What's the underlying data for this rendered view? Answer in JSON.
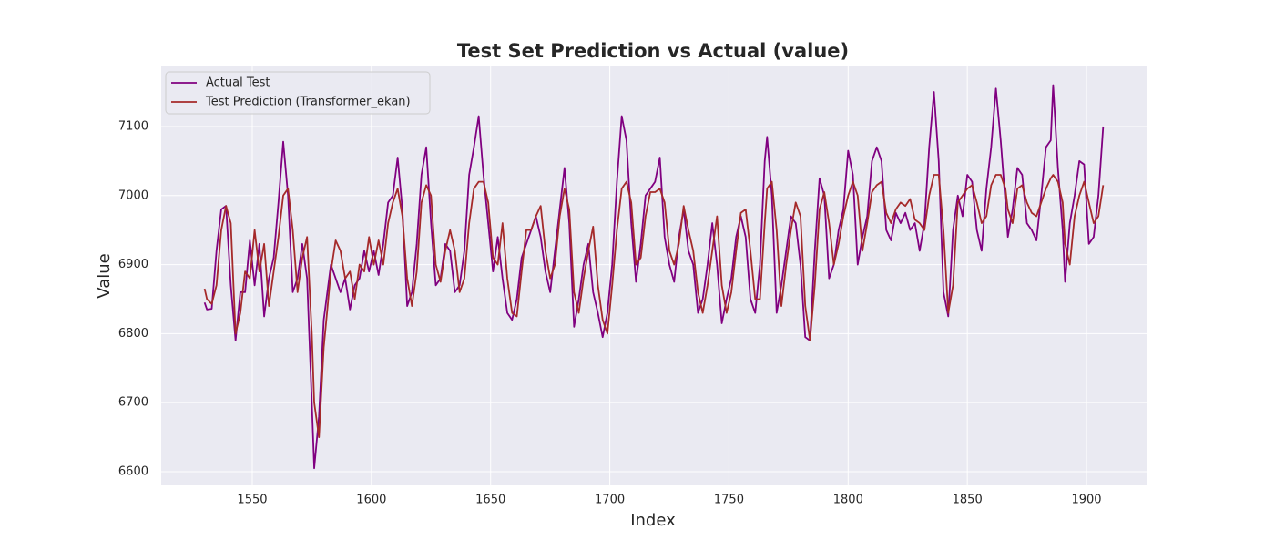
{
  "chart_data": {
    "type": "line",
    "title": "Test Set Prediction vs Actual (value)",
    "xlabel": "Index",
    "ylabel": "Value",
    "x": [
      1530,
      1531,
      1533,
      1535,
      1537,
      1539,
      1541,
      1543,
      1545,
      1547,
      1549,
      1551,
      1553,
      1555,
      1557,
      1559,
      1561,
      1563,
      1565,
      1567,
      1569,
      1571,
      1573,
      1575,
      1576,
      1578,
      1580,
      1583,
      1585,
      1587,
      1589,
      1591,
      1593,
      1595,
      1597,
      1599,
      1601,
      1603,
      1605,
      1607,
      1609,
      1611,
      1613,
      1615,
      1617,
      1619,
      1621,
      1623,
      1625,
      1627,
      1629,
      1631,
      1633,
      1635,
      1637,
      1639,
      1641,
      1643,
      1645,
      1647,
      1649,
      1651,
      1653,
      1655,
      1657,
      1659,
      1661,
      1663,
      1665,
      1667,
      1669,
      1671,
      1673,
      1675,
      1677,
      1679,
      1681,
      1683,
      1685,
      1687,
      1689,
      1691,
      1693,
      1695,
      1697,
      1699,
      1701,
      1703,
      1705,
      1707,
      1709,
      1711,
      1713,
      1715,
      1717,
      1719,
      1721,
      1723,
      1725,
      1727,
      1729,
      1731,
      1733,
      1735,
      1737,
      1739,
      1741,
      1743,
      1745,
      1747,
      1749,
      1751,
      1753,
      1755,
      1757,
      1759,
      1761,
      1763,
      1765,
      1766,
      1768,
      1770,
      1772,
      1774,
      1776,
      1778,
      1780,
      1782,
      1784,
      1786,
      1788,
      1790,
      1792,
      1794,
      1796,
      1798,
      1800,
      1802,
      1804,
      1806,
      1808,
      1810,
      1812,
      1814,
      1816,
      1818,
      1820,
      1822,
      1824,
      1826,
      1828,
      1830,
      1832,
      1834,
      1836,
      1838,
      1840,
      1842,
      1844,
      1846,
      1848,
      1850,
      1852,
      1854,
      1856,
      1858,
      1860,
      1862,
      1864,
      1866,
      1867,
      1869,
      1871,
      1873,
      1875,
      1877,
      1879,
      1881,
      1883,
      1885,
      1886,
      1888,
      1890,
      1891,
      1893,
      1895,
      1897,
      1899,
      1901,
      1903,
      1905,
      1907
    ],
    "series": [
      {
        "name": "Actual Test",
        "color": "#800080",
        "values": [
          6845,
          6835,
          6836,
          6920,
          6980,
          6985,
          6870,
          6790,
          6860,
          6860,
          6935,
          6870,
          6930,
          6825,
          6880,
          6910,
          6990,
          7078,
          7000,
          6860,
          6880,
          6930,
          6880,
          6700,
          6605,
          6680,
          6820,
          6900,
          6880,
          6860,
          6880,
          6835,
          6870,
          6880,
          6920,
          6890,
          6920,
          6885,
          6930,
          6990,
          7000,
          7055,
          6980,
          6840,
          6860,
          6930,
          7030,
          7070,
          6960,
          6870,
          6880,
          6930,
          6920,
          6860,
          6870,
          6920,
          7030,
          7070,
          7115,
          7030,
          6960,
          6890,
          6940,
          6880,
          6830,
          6820,
          6850,
          6910,
          6930,
          6950,
          6970,
          6940,
          6890,
          6860,
          6920,
          6980,
          7040,
          6960,
          6810,
          6850,
          6900,
          6930,
          6860,
          6830,
          6795,
          6830,
          6900,
          7020,
          7115,
          7080,
          6960,
          6875,
          6930,
          7000,
          7010,
          7020,
          7055,
          6940,
          6900,
          6875,
          6940,
          6980,
          6920,
          6900,
          6830,
          6850,
          6900,
          6960,
          6900,
          6815,
          6850,
          6880,
          6940,
          6970,
          6940,
          6850,
          6830,
          6900,
          7050,
          7085,
          7000,
          6830,
          6870,
          6920,
          6970,
          6960,
          6900,
          6795,
          6790,
          6920,
          7025,
          7000,
          6880,
          6900,
          6950,
          6980,
          7065,
          7030,
          6900,
          6940,
          6970,
          7050,
          7070,
          7050,
          6950,
          6935,
          6975,
          6960,
          6975,
          6950,
          6960,
          6920,
          6960,
          7070,
          7150,
          7050,
          6860,
          6825,
          6950,
          7000,
          6970,
          7030,
          7020,
          6950,
          6920,
          7010,
          7070,
          7155,
          7080,
          6990,
          6940,
          6980,
          7040,
          7030,
          6960,
          6950,
          6935,
          7000,
          7070,
          7080,
          7160,
          7040,
          6950,
          6875,
          6960,
          7000,
          7050,
          7045,
          6930,
          6940,
          7000,
          7100
        ]
      },
      {
        "name": "Test Prediction (Transformer_ekan)",
        "color": "#a52a2a",
        "values": [
          6865,
          6850,
          6843,
          6870,
          6950,
          6985,
          6960,
          6800,
          6830,
          6890,
          6880,
          6950,
          6890,
          6930,
          6840,
          6890,
          6940,
          7000,
          7010,
          6950,
          6860,
          6910,
          6940,
          6800,
          6700,
          6650,
          6780,
          6890,
          6935,
          6920,
          6880,
          6890,
          6850,
          6900,
          6890,
          6940,
          6900,
          6935,
          6900,
          6960,
          6990,
          7010,
          6970,
          6880,
          6840,
          6890,
          6990,
          7015,
          7000,
          6900,
          6875,
          6920,
          6950,
          6920,
          6860,
          6880,
          6960,
          7010,
          7020,
          7020,
          6990,
          6910,
          6900,
          6960,
          6880,
          6830,
          6825,
          6890,
          6950,
          6950,
          6970,
          6985,
          6920,
          6880,
          6900,
          6970,
          7010,
          6980,
          6860,
          6830,
          6880,
          6920,
          6955,
          6870,
          6820,
          6800,
          6870,
          6950,
          7010,
          7020,
          6990,
          6900,
          6910,
          6970,
          7005,
          7005,
          7010,
          6990,
          6920,
          6900,
          6930,
          6985,
          6950,
          6920,
          6860,
          6830,
          6870,
          6920,
          6970,
          6870,
          6830,
          6860,
          6920,
          6975,
          6980,
          6920,
          6850,
          6850,
          6960,
          7010,
          7020,
          6950,
          6840,
          6900,
          6950,
          6990,
          6970,
          6840,
          6790,
          6870,
          6980,
          7005,
          6960,
          6900,
          6930,
          6970,
          7000,
          7020,
          7000,
          6920,
          6960,
          7005,
          7015,
          7020,
          6975,
          6960,
          6980,
          6990,
          6985,
          6995,
          6965,
          6960,
          6950,
          7000,
          7030,
          7030,
          6950,
          6830,
          6870,
          6990,
          7000,
          7010,
          7015,
          6990,
          6960,
          6970,
          7015,
          7030,
          7030,
          7010,
          6980,
          6960,
          7010,
          7015,
          6990,
          6975,
          6970,
          6990,
          7010,
          7025,
          7030,
          7020,
          6990,
          6930,
          6900,
          6970,
          7000,
          7020,
          6990,
          6960,
          6970,
          7015
        ]
      }
    ],
    "xlim": [
      1511.8,
      1925.2
    ],
    "xticks": [
      1550,
      1600,
      1650,
      1700,
      1750,
      1800,
      1850,
      1900
    ],
    "ylim": [
      6580.2,
      7187
    ],
    "yticks": [
      6600,
      6700,
      6800,
      6900,
      7000,
      7100
    ],
    "grid": true,
    "legend": "upper left"
  }
}
